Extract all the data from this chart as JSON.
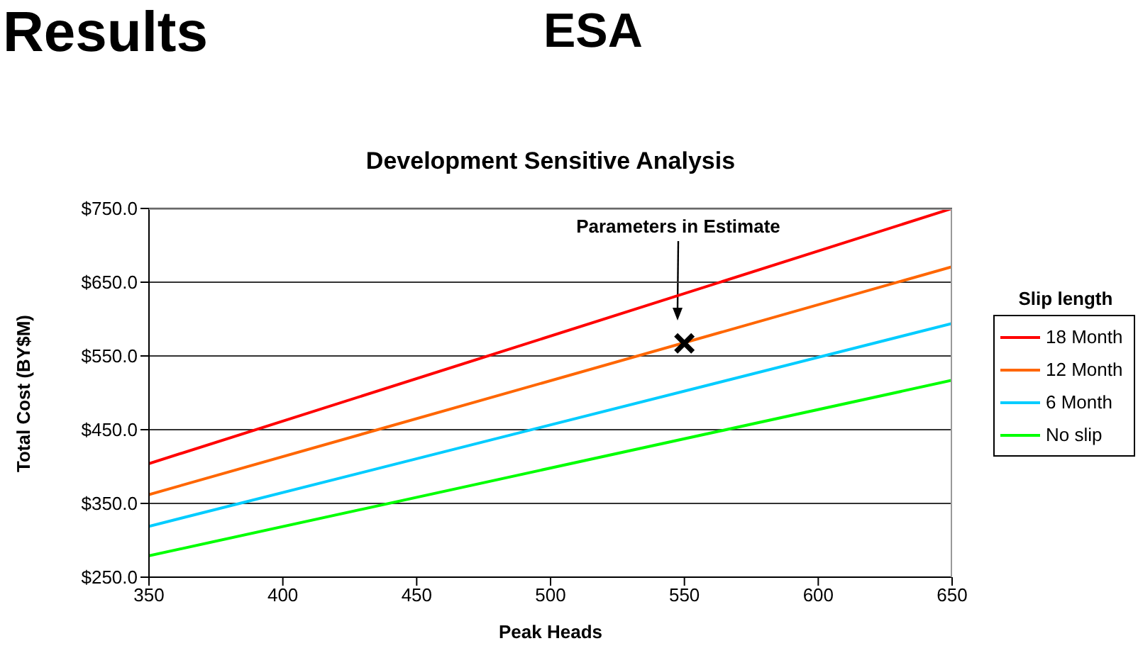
{
  "chart_data": {
    "type": "line",
    "title": "Development Sensitive Analysis",
    "xlabel": "Peak Heads",
    "ylabel": "Total Cost (BY$M)",
    "legend_title": "Slip length",
    "annotations": [
      "Results",
      "ESA",
      "Parameters in Estimate"
    ],
    "x": [
      350,
      650
    ],
    "series": [
      {
        "name": "18 Month",
        "color": "#ff0000",
        "values": [
          404,
          750
        ]
      },
      {
        "name": "12 Month",
        "color": "#ff6600",
        "values": [
          362,
          671
        ]
      },
      {
        "name": "6 Month",
        "color": "#00ccff",
        "values": [
          319,
          594
        ]
      },
      {
        "name": "No slip",
        "color": "#00ff00",
        "values": [
          279,
          517
        ]
      },
      {
        "type": "scatter",
        "marker": "cross",
        "color": "#000000",
        "x": [
          550
        ],
        "values": [
          567
        ]
      }
    ],
    "xlim": [
      350,
      650
    ],
    "xticks": [
      350,
      400,
      450,
      500,
      550,
      600,
      650
    ],
    "ylim": [
      250,
      750
    ],
    "yticks": [
      {
        "value": 250,
        "label": "$250.0"
      },
      {
        "value": 350,
        "label": "$350.0"
      },
      {
        "value": 450,
        "label": "$450.0"
      },
      {
        "value": 550,
        "label": "$550.0"
      },
      {
        "value": 650,
        "label": "$650.0"
      },
      {
        "value": 750,
        "label": "$750.0"
      }
    ],
    "grid": "y",
    "legend": "right",
    "marker": "none",
    "line_style": "solid"
  }
}
